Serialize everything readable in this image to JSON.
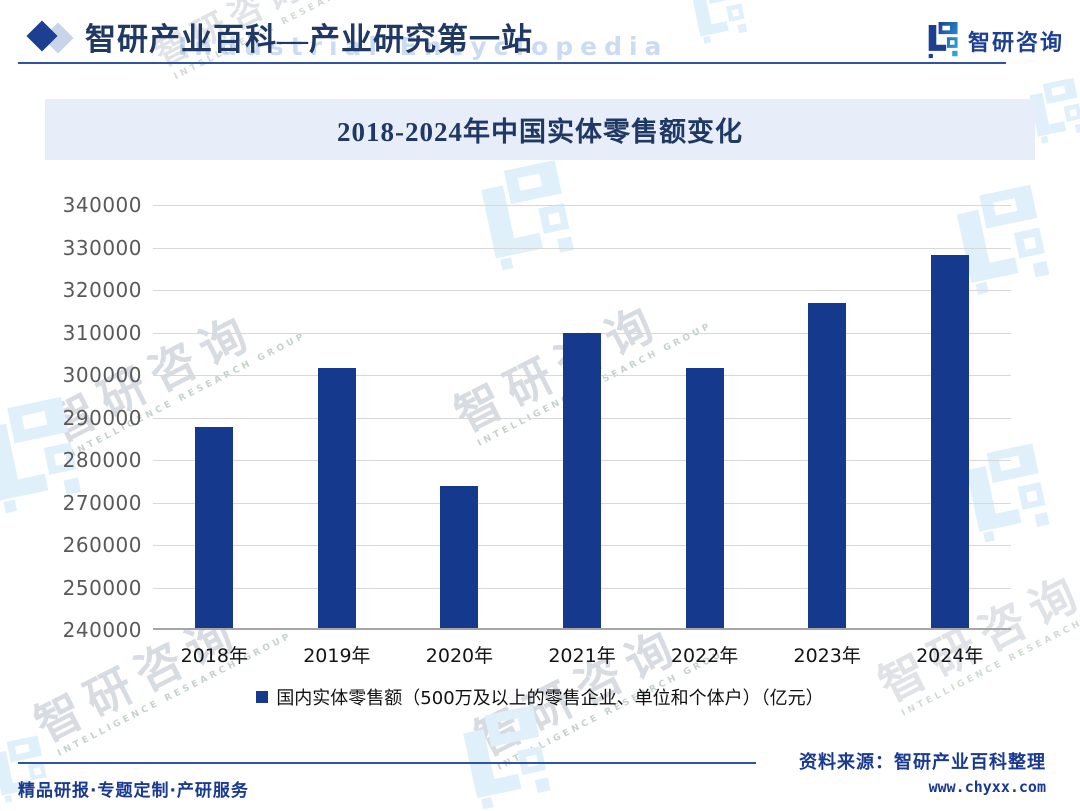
{
  "header": {
    "title": "智研产业百科—产业研究第一站",
    "logo_text": "智研咨询",
    "watermark_text_en": "Industrial Encyclopedia"
  },
  "chart_data": {
    "type": "bar",
    "title": "2018-2024年中国实体零售额变化",
    "categories": [
      "2018年",
      "2019年",
      "2020年",
      "2021年",
      "2022年",
      "2023年",
      "2024年"
    ],
    "series": [
      {
        "name": "国内实体零售额（500万及以上的零售企业、单位和个体户）（亿元）",
        "values": [
          287800,
          301600,
          274000,
          309900,
          301600,
          316900,
          328200
        ]
      }
    ],
    "xlabel": "",
    "ylabel": "",
    "ylim": [
      240000,
      340000
    ],
    "ytick_step": 10000,
    "yticks": [
      240000,
      250000,
      260000,
      270000,
      280000,
      290000,
      300000,
      310000,
      320000,
      330000,
      340000
    ],
    "grid": true,
    "legend_position": "bottom",
    "bar_color": "#15398c",
    "value_unit": "亿元"
  },
  "footer": {
    "source_label": "资料来源：智研产业百科整理",
    "website": "www.chyxx.com",
    "services": "精品研报·专题定制·产研服务"
  },
  "watermarks": {
    "cn": "智研咨询",
    "cn_caption": "INTELLIGENCE RESEARCH GROUP"
  },
  "colors": {
    "bar": "#15398c",
    "title_navy": "#1f3864",
    "footer_navy": "#1a3a8f",
    "banner_bg": "#e8eef9",
    "rule_blue": "#2e55a5",
    "grid": "#d8d8d8",
    "axis": "#a6a6a6",
    "logo_navy": "#1d3f92",
    "logo_teal": "#2ab0e0"
  }
}
